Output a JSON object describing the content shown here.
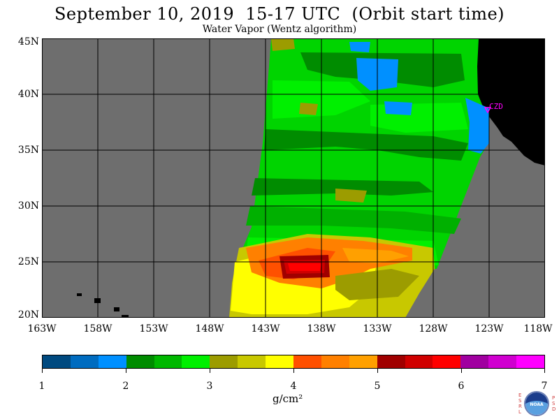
{
  "title": "September 10, 2019  15-17 UTC  (Orbit start time)",
  "subtitle": "Water Vapor (Wentz algorithm)",
  "map": {
    "lat_ticks": [
      "45N",
      "40N",
      "35N",
      "30N",
      "25N",
      "20N"
    ],
    "lon_ticks": [
      "163W",
      "158W",
      "153W",
      "148W",
      "143W",
      "138W",
      "133W",
      "128W",
      "123W",
      "118W"
    ],
    "station_label": "CZD",
    "colors": {
      "no_data": "#6e6e6e",
      "land": "#000000",
      "grid": "#000000",
      "station": "#ff00ff"
    }
  },
  "colorbar": {
    "ticks": [
      "1",
      "2",
      "3",
      "4",
      "5",
      "6",
      "7"
    ],
    "units": "g/cm²",
    "colors": [
      "#004a80",
      "#006cc0",
      "#0090ff",
      "#008c00",
      "#00b800",
      "#00f000",
      "#9c9c00",
      "#c8c800",
      "#ffff00",
      "#ff5000",
      "#ff8000",
      "#ffa000",
      "#a00000",
      "#d00000",
      "#ff0000",
      "#a000a0",
      "#d000d0",
      "#ff00ff"
    ]
  },
  "logo": {
    "left_letters": "ESRL",
    "right_letters": "PSD",
    "text": "NOAA"
  }
}
